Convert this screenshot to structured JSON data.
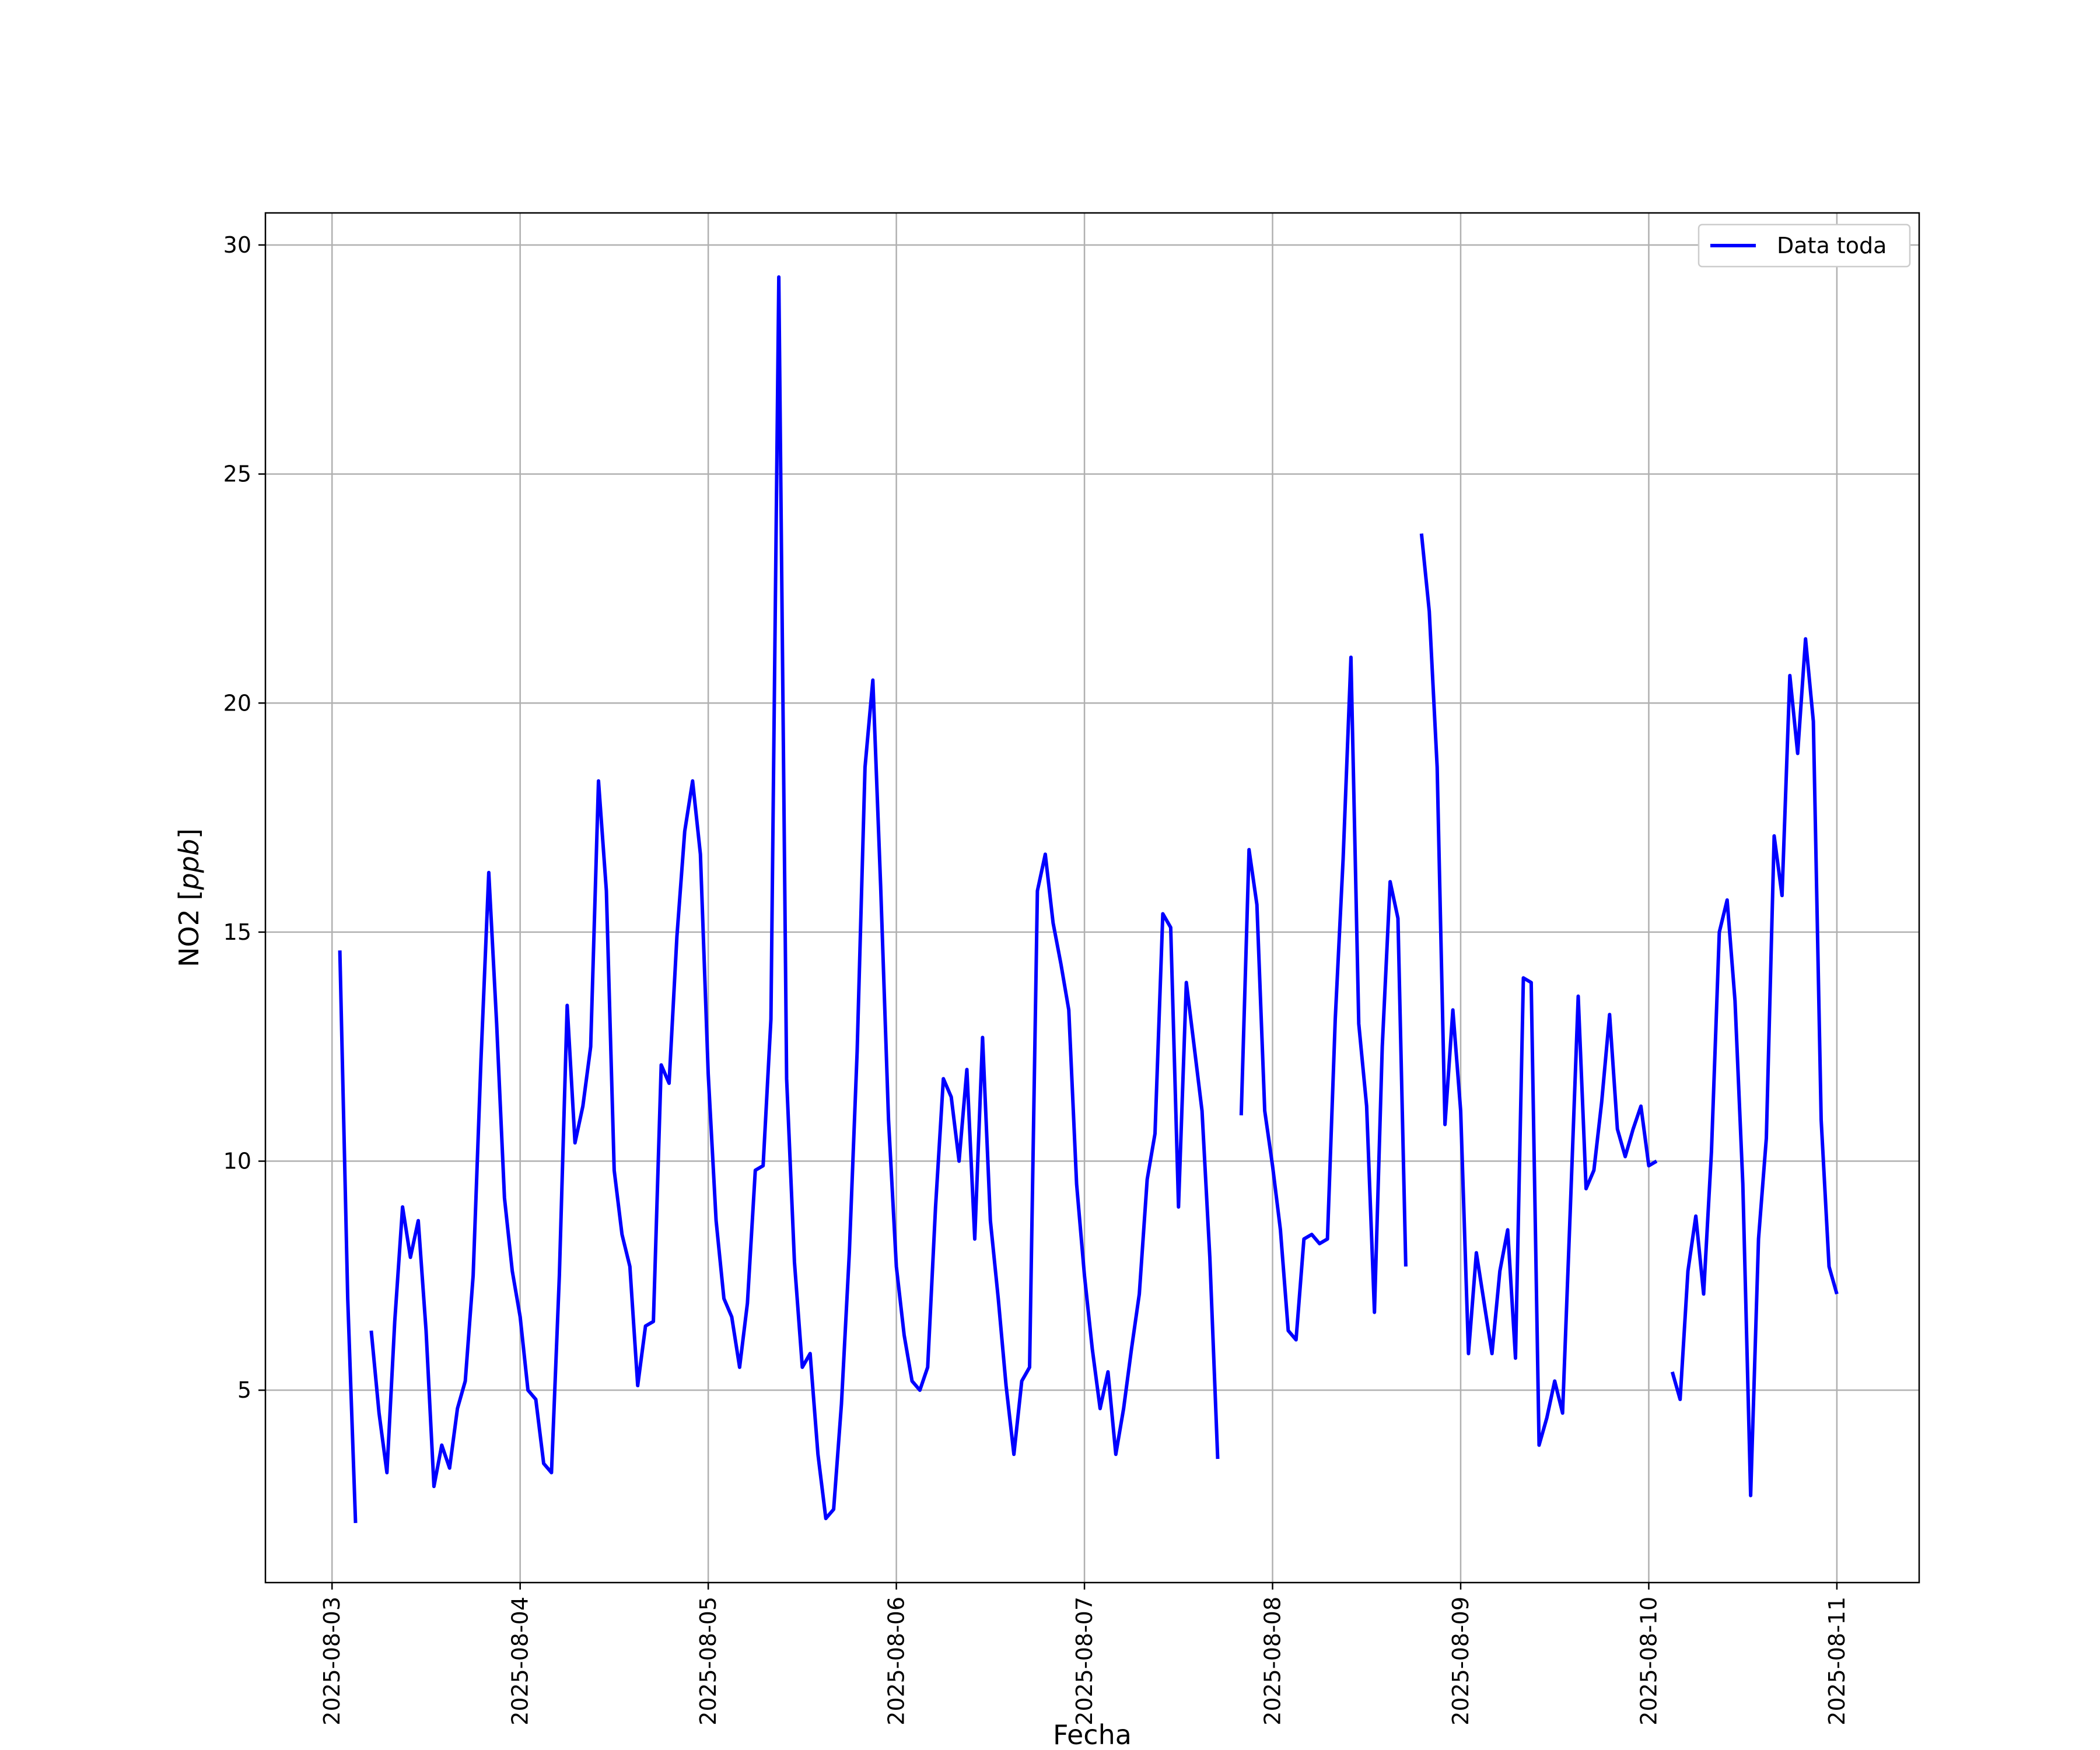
{
  "chart_data": {
    "type": "line",
    "title": "",
    "xlabel": "Fecha",
    "ylabel": "NO2",
    "ylabel_unit": "ppb",
    "xlim": [
      "2025-08-02T15:30",
      "2025-08-11T10:30"
    ],
    "ylim": [
      0.8,
      30.7
    ],
    "x_ticks": [
      "2025-08-03",
      "2025-08-04",
      "2025-08-05",
      "2025-08-06",
      "2025-08-07",
      "2025-08-08",
      "2025-08-09",
      "2025-08-10",
      "2025-08-11"
    ],
    "y_ticks": [
      5,
      10,
      15,
      20,
      25,
      30
    ],
    "grid": true,
    "legend_position": "top-right",
    "series": [
      {
        "name": "Data toda",
        "color": "#0000ff",
        "points": [
          [
            "2025-08-03T01:00",
            14.6
          ],
          [
            "2025-08-03T02:00",
            7.0
          ],
          [
            "2025-08-03T03:00",
            2.1
          ],
          [
            "2025-08-03T04:00",
            null
          ],
          [
            "2025-08-03T05:00",
            6.3
          ],
          [
            "2025-08-03T06:00",
            4.5
          ],
          [
            "2025-08-03T07:00",
            3.2
          ],
          [
            "2025-08-03T08:00",
            6.5
          ],
          [
            "2025-08-03T09:00",
            9.0
          ],
          [
            "2025-08-03T10:00",
            7.9
          ],
          [
            "2025-08-03T11:00",
            8.7
          ],
          [
            "2025-08-03T12:00",
            6.3
          ],
          [
            "2025-08-03T13:00",
            2.9
          ],
          [
            "2025-08-03T14:00",
            3.8
          ],
          [
            "2025-08-03T15:00",
            3.3
          ],
          [
            "2025-08-03T16:00",
            4.6
          ],
          [
            "2025-08-03T17:00",
            5.2
          ],
          [
            "2025-08-03T18:00",
            7.5
          ],
          [
            "2025-08-03T19:00",
            12.2
          ],
          [
            "2025-08-03T20:00",
            16.3
          ],
          [
            "2025-08-03T21:00",
            13.0
          ],
          [
            "2025-08-03T22:00",
            9.2
          ],
          [
            "2025-08-03T23:00",
            7.6
          ],
          [
            "2025-08-04T00:00",
            6.6
          ],
          [
            "2025-08-04T01:00",
            5.0
          ],
          [
            "2025-08-04T02:00",
            4.8
          ],
          [
            "2025-08-04T03:00",
            3.4
          ],
          [
            "2025-08-04T04:00",
            3.2
          ],
          [
            "2025-08-04T05:00",
            7.5
          ],
          [
            "2025-08-04T06:00",
            13.4
          ],
          [
            "2025-08-04T07:00",
            10.4
          ],
          [
            "2025-08-04T08:00",
            11.2
          ],
          [
            "2025-08-04T09:00",
            12.5
          ],
          [
            "2025-08-04T10:00",
            18.3
          ],
          [
            "2025-08-04T11:00",
            15.9
          ],
          [
            "2025-08-04T12:00",
            9.8
          ],
          [
            "2025-08-04T13:00",
            8.4
          ],
          [
            "2025-08-04T14:00",
            7.7
          ],
          [
            "2025-08-04T15:00",
            5.1
          ],
          [
            "2025-08-04T16:00",
            6.4
          ],
          [
            "2025-08-04T17:00",
            6.5
          ],
          [
            "2025-08-04T18:00",
            12.1
          ],
          [
            "2025-08-04T19:00",
            11.7
          ],
          [
            "2025-08-04T20:00",
            14.9
          ],
          [
            "2025-08-04T21:00",
            17.2
          ],
          [
            "2025-08-04T22:00",
            18.3
          ],
          [
            "2025-08-04T23:00",
            16.7
          ],
          [
            "2025-08-05T00:00",
            11.9
          ],
          [
            "2025-08-05T01:00",
            8.7
          ],
          [
            "2025-08-05T02:00",
            7.0
          ],
          [
            "2025-08-05T03:00",
            6.6
          ],
          [
            "2025-08-05T04:00",
            5.5
          ],
          [
            "2025-08-05T05:00",
            6.9
          ],
          [
            "2025-08-05T06:00",
            9.8
          ],
          [
            "2025-08-05T07:00",
            9.9
          ],
          [
            "2025-08-05T08:00",
            13.1
          ],
          [
            "2025-08-05T09:00",
            29.3
          ],
          [
            "2025-08-05T10:00",
            11.8
          ],
          [
            "2025-08-05T11:00",
            7.8
          ],
          [
            "2025-08-05T12:00",
            5.5
          ],
          [
            "2025-08-05T13:00",
            5.8
          ],
          [
            "2025-08-05T14:00",
            3.6
          ],
          [
            "2025-08-05T15:00",
            2.2
          ],
          [
            "2025-08-05T16:00",
            2.4
          ],
          [
            "2025-08-05T17:00",
            4.7
          ],
          [
            "2025-08-05T18:00",
            8.0
          ],
          [
            "2025-08-05T19:00",
            12.4
          ],
          [
            "2025-08-05T20:00",
            18.6
          ],
          [
            "2025-08-05T21:00",
            20.5
          ],
          [
            "2025-08-05T22:00",
            16.0
          ],
          [
            "2025-08-05T23:00",
            10.9
          ],
          [
            "2025-08-06T00:00",
            7.7
          ],
          [
            "2025-08-06T01:00",
            6.2
          ],
          [
            "2025-08-06T02:00",
            5.2
          ],
          [
            "2025-08-06T03:00",
            5.0
          ],
          [
            "2025-08-06T04:00",
            5.5
          ],
          [
            "2025-08-06T05:00",
            9.0
          ],
          [
            "2025-08-06T06:00",
            11.8
          ],
          [
            "2025-08-06T07:00",
            11.4
          ],
          [
            "2025-08-06T08:00",
            10.0
          ],
          [
            "2025-08-06T09:00",
            12.0
          ],
          [
            "2025-08-06T10:00",
            8.3
          ],
          [
            "2025-08-06T11:00",
            12.7
          ],
          [
            "2025-08-06T12:00",
            8.7
          ],
          [
            "2025-08-06T13:00",
            7.0
          ],
          [
            "2025-08-06T14:00",
            5.1
          ],
          [
            "2025-08-06T15:00",
            3.6
          ],
          [
            "2025-08-06T16:00",
            5.2
          ],
          [
            "2025-08-06T17:00",
            5.5
          ],
          [
            "2025-08-06T18:00",
            15.9
          ],
          [
            "2025-08-06T19:00",
            16.7
          ],
          [
            "2025-08-06T20:00",
            15.2
          ],
          [
            "2025-08-06T21:00",
            14.3
          ],
          [
            "2025-08-06T22:00",
            13.3
          ],
          [
            "2025-08-06T23:00",
            9.5
          ],
          [
            "2025-08-07T00:00",
            7.5
          ],
          [
            "2025-08-07T01:00",
            5.9
          ],
          [
            "2025-08-07T02:00",
            4.6
          ],
          [
            "2025-08-07T03:00",
            5.4
          ],
          [
            "2025-08-07T04:00",
            3.6
          ],
          [
            "2025-08-07T05:00",
            4.6
          ],
          [
            "2025-08-07T06:00",
            5.9
          ],
          [
            "2025-08-07T07:00",
            7.1
          ],
          [
            "2025-08-07T08:00",
            9.6
          ],
          [
            "2025-08-07T09:00",
            10.6
          ],
          [
            "2025-08-07T10:00",
            15.4
          ],
          [
            "2025-08-07T11:00",
            15.1
          ],
          [
            "2025-08-07T12:00",
            9.0
          ],
          [
            "2025-08-07T13:00",
            13.9
          ],
          [
            "2025-08-07T14:00",
            12.5
          ],
          [
            "2025-08-07T15:00",
            11.1
          ],
          [
            "2025-08-07T16:00",
            7.9
          ],
          [
            "2025-08-07T17:00",
            3.5
          ],
          [
            "2025-08-07T18:00",
            null
          ],
          [
            "2025-08-07T19:00",
            null
          ],
          [
            "2025-08-07T20:00",
            11.0
          ],
          [
            "2025-08-07T21:00",
            16.8
          ],
          [
            "2025-08-07T22:00",
            15.6
          ],
          [
            "2025-08-07T23:00",
            11.1
          ],
          [
            "2025-08-08T00:00",
            9.9
          ],
          [
            "2025-08-08T01:00",
            8.5
          ],
          [
            "2025-08-08T02:00",
            6.3
          ],
          [
            "2025-08-08T03:00",
            6.1
          ],
          [
            "2025-08-08T04:00",
            8.3
          ],
          [
            "2025-08-08T05:00",
            8.4
          ],
          [
            "2025-08-08T06:00",
            8.2
          ],
          [
            "2025-08-08T07:00",
            8.3
          ],
          [
            "2025-08-08T08:00",
            13.1
          ],
          [
            "2025-08-08T09:00",
            16.6
          ],
          [
            "2025-08-08T10:00",
            21.0
          ],
          [
            "2025-08-08T11:00",
            13.0
          ],
          [
            "2025-08-08T12:00",
            11.2
          ],
          [
            "2025-08-08T13:00",
            6.7
          ],
          [
            "2025-08-08T14:00",
            12.5
          ],
          [
            "2025-08-08T15:00",
            16.1
          ],
          [
            "2025-08-08T16:00",
            15.3
          ],
          [
            "2025-08-08T17:00",
            7.7
          ],
          [
            "2025-08-08T18:00",
            null
          ],
          [
            "2025-08-08T19:00",
            23.7
          ],
          [
            "2025-08-08T20:00",
            22.0
          ],
          [
            "2025-08-08T21:00",
            18.6
          ],
          [
            "2025-08-08T22:00",
            10.8
          ],
          [
            "2025-08-08T23:00",
            13.3
          ],
          [
            "2025-08-09T00:00",
            11.1
          ],
          [
            "2025-08-09T01:00",
            5.8
          ],
          [
            "2025-08-09T02:00",
            8.0
          ],
          [
            "2025-08-09T03:00",
            6.9
          ],
          [
            "2025-08-09T04:00",
            5.8
          ],
          [
            "2025-08-09T05:00",
            7.6
          ],
          [
            "2025-08-09T06:00",
            8.5
          ],
          [
            "2025-08-09T07:00",
            5.7
          ],
          [
            "2025-08-09T08:00",
            14.0
          ],
          [
            "2025-08-09T09:00",
            13.9
          ],
          [
            "2025-08-09T10:00",
            3.8
          ],
          [
            "2025-08-09T11:00",
            4.4
          ],
          [
            "2025-08-09T12:00",
            5.2
          ],
          [
            "2025-08-09T13:00",
            4.5
          ],
          [
            "2025-08-09T14:00",
            9.0
          ],
          [
            "2025-08-09T15:00",
            13.6
          ],
          [
            "2025-08-09T16:00",
            9.4
          ],
          [
            "2025-08-09T17:00",
            9.8
          ],
          [
            "2025-08-09T18:00",
            11.3
          ],
          [
            "2025-08-09T19:00",
            13.2
          ],
          [
            "2025-08-09T20:00",
            10.7
          ],
          [
            "2025-08-09T21:00",
            10.1
          ],
          [
            "2025-08-09T22:00",
            10.7
          ],
          [
            "2025-08-09T23:00",
            11.2
          ],
          [
            "2025-08-10T00:00",
            9.9
          ],
          [
            "2025-08-10T01:00",
            10.0
          ],
          [
            "2025-08-10T02:00",
            null
          ],
          [
            "2025-08-10T03:00",
            5.4
          ],
          [
            "2025-08-10T04:00",
            4.8
          ],
          [
            "2025-08-10T05:00",
            7.6
          ],
          [
            "2025-08-10T06:00",
            8.8
          ],
          [
            "2025-08-10T07:00",
            7.1
          ],
          [
            "2025-08-10T08:00",
            10.2
          ],
          [
            "2025-08-10T09:00",
            15.0
          ],
          [
            "2025-08-10T10:00",
            15.7
          ],
          [
            "2025-08-10T11:00",
            13.5
          ],
          [
            "2025-08-10T12:00",
            9.5
          ],
          [
            "2025-08-10T13:00",
            2.7
          ],
          [
            "2025-08-10T14:00",
            8.3
          ],
          [
            "2025-08-10T15:00",
            10.5
          ],
          [
            "2025-08-10T16:00",
            17.1
          ],
          [
            "2025-08-10T17:00",
            15.8
          ],
          [
            "2025-08-10T18:00",
            20.6
          ],
          [
            "2025-08-10T19:00",
            18.9
          ],
          [
            "2025-08-10T20:00",
            21.4
          ],
          [
            "2025-08-10T21:00",
            19.6
          ],
          [
            "2025-08-10T22:00",
            10.9
          ],
          [
            "2025-08-10T23:00",
            7.7
          ],
          [
            "2025-08-11T00:00",
            7.1
          ]
        ]
      }
    ]
  }
}
